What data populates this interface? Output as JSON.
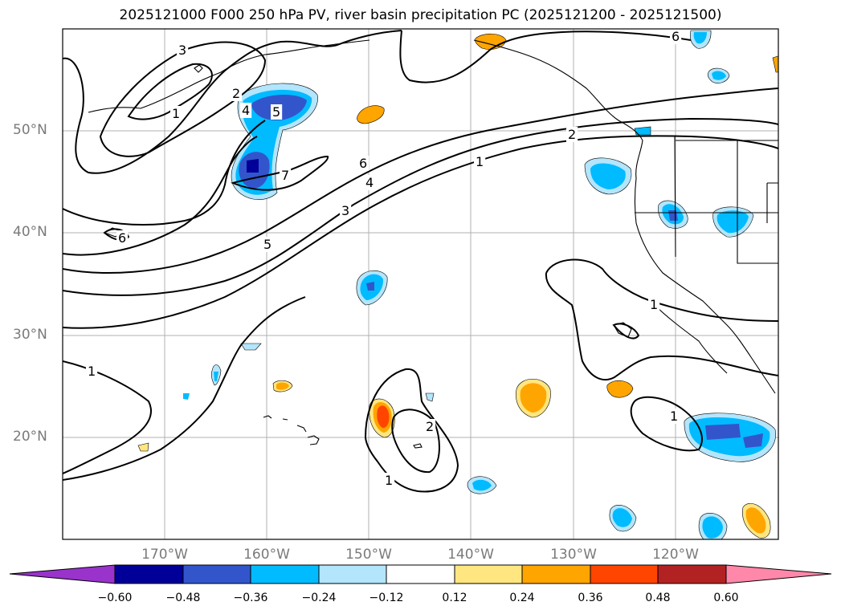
{
  "title": "2025121000 F000 250 hPa PV, river basin precipitation PC (2025121200 - 2025121500)",
  "axes": {
    "lat_labels": [
      "50°N",
      "40°N",
      "30°N",
      "20°N"
    ],
    "lon_labels": [
      "170°W",
      "160°W",
      "150°W",
      "140°W",
      "130°W",
      "120°W"
    ]
  },
  "contour_labels": [
    "3",
    "2",
    "1",
    "4",
    "5",
    "7",
    "6",
    "6",
    "4",
    "3",
    "5",
    "2",
    "1",
    "6",
    "1",
    "1",
    "2",
    "1",
    "1"
  ],
  "colorbar": {
    "ticks": [
      "−0.60",
      "−0.48",
      "−0.36",
      "−0.24",
      "−0.12",
      "0.12",
      "0.24",
      "0.36",
      "0.48",
      "0.60"
    ],
    "colors": [
      "#9933cc",
      "#000099",
      "#3355cc",
      "#00bbff",
      "#b3e5fc",
      "#ffffff",
      "#ffe680",
      "#ffa500",
      "#ff4500",
      "#b22222",
      "#ff88aa"
    ]
  },
  "palette": {
    "pos1": "#ffe680",
    "pos2": "#ffa500",
    "pos3": "#ff4500",
    "neg1": "#b3e5fc",
    "neg2": "#00bbff",
    "neg3": "#3355cc",
    "neg4": "#000099"
  }
}
